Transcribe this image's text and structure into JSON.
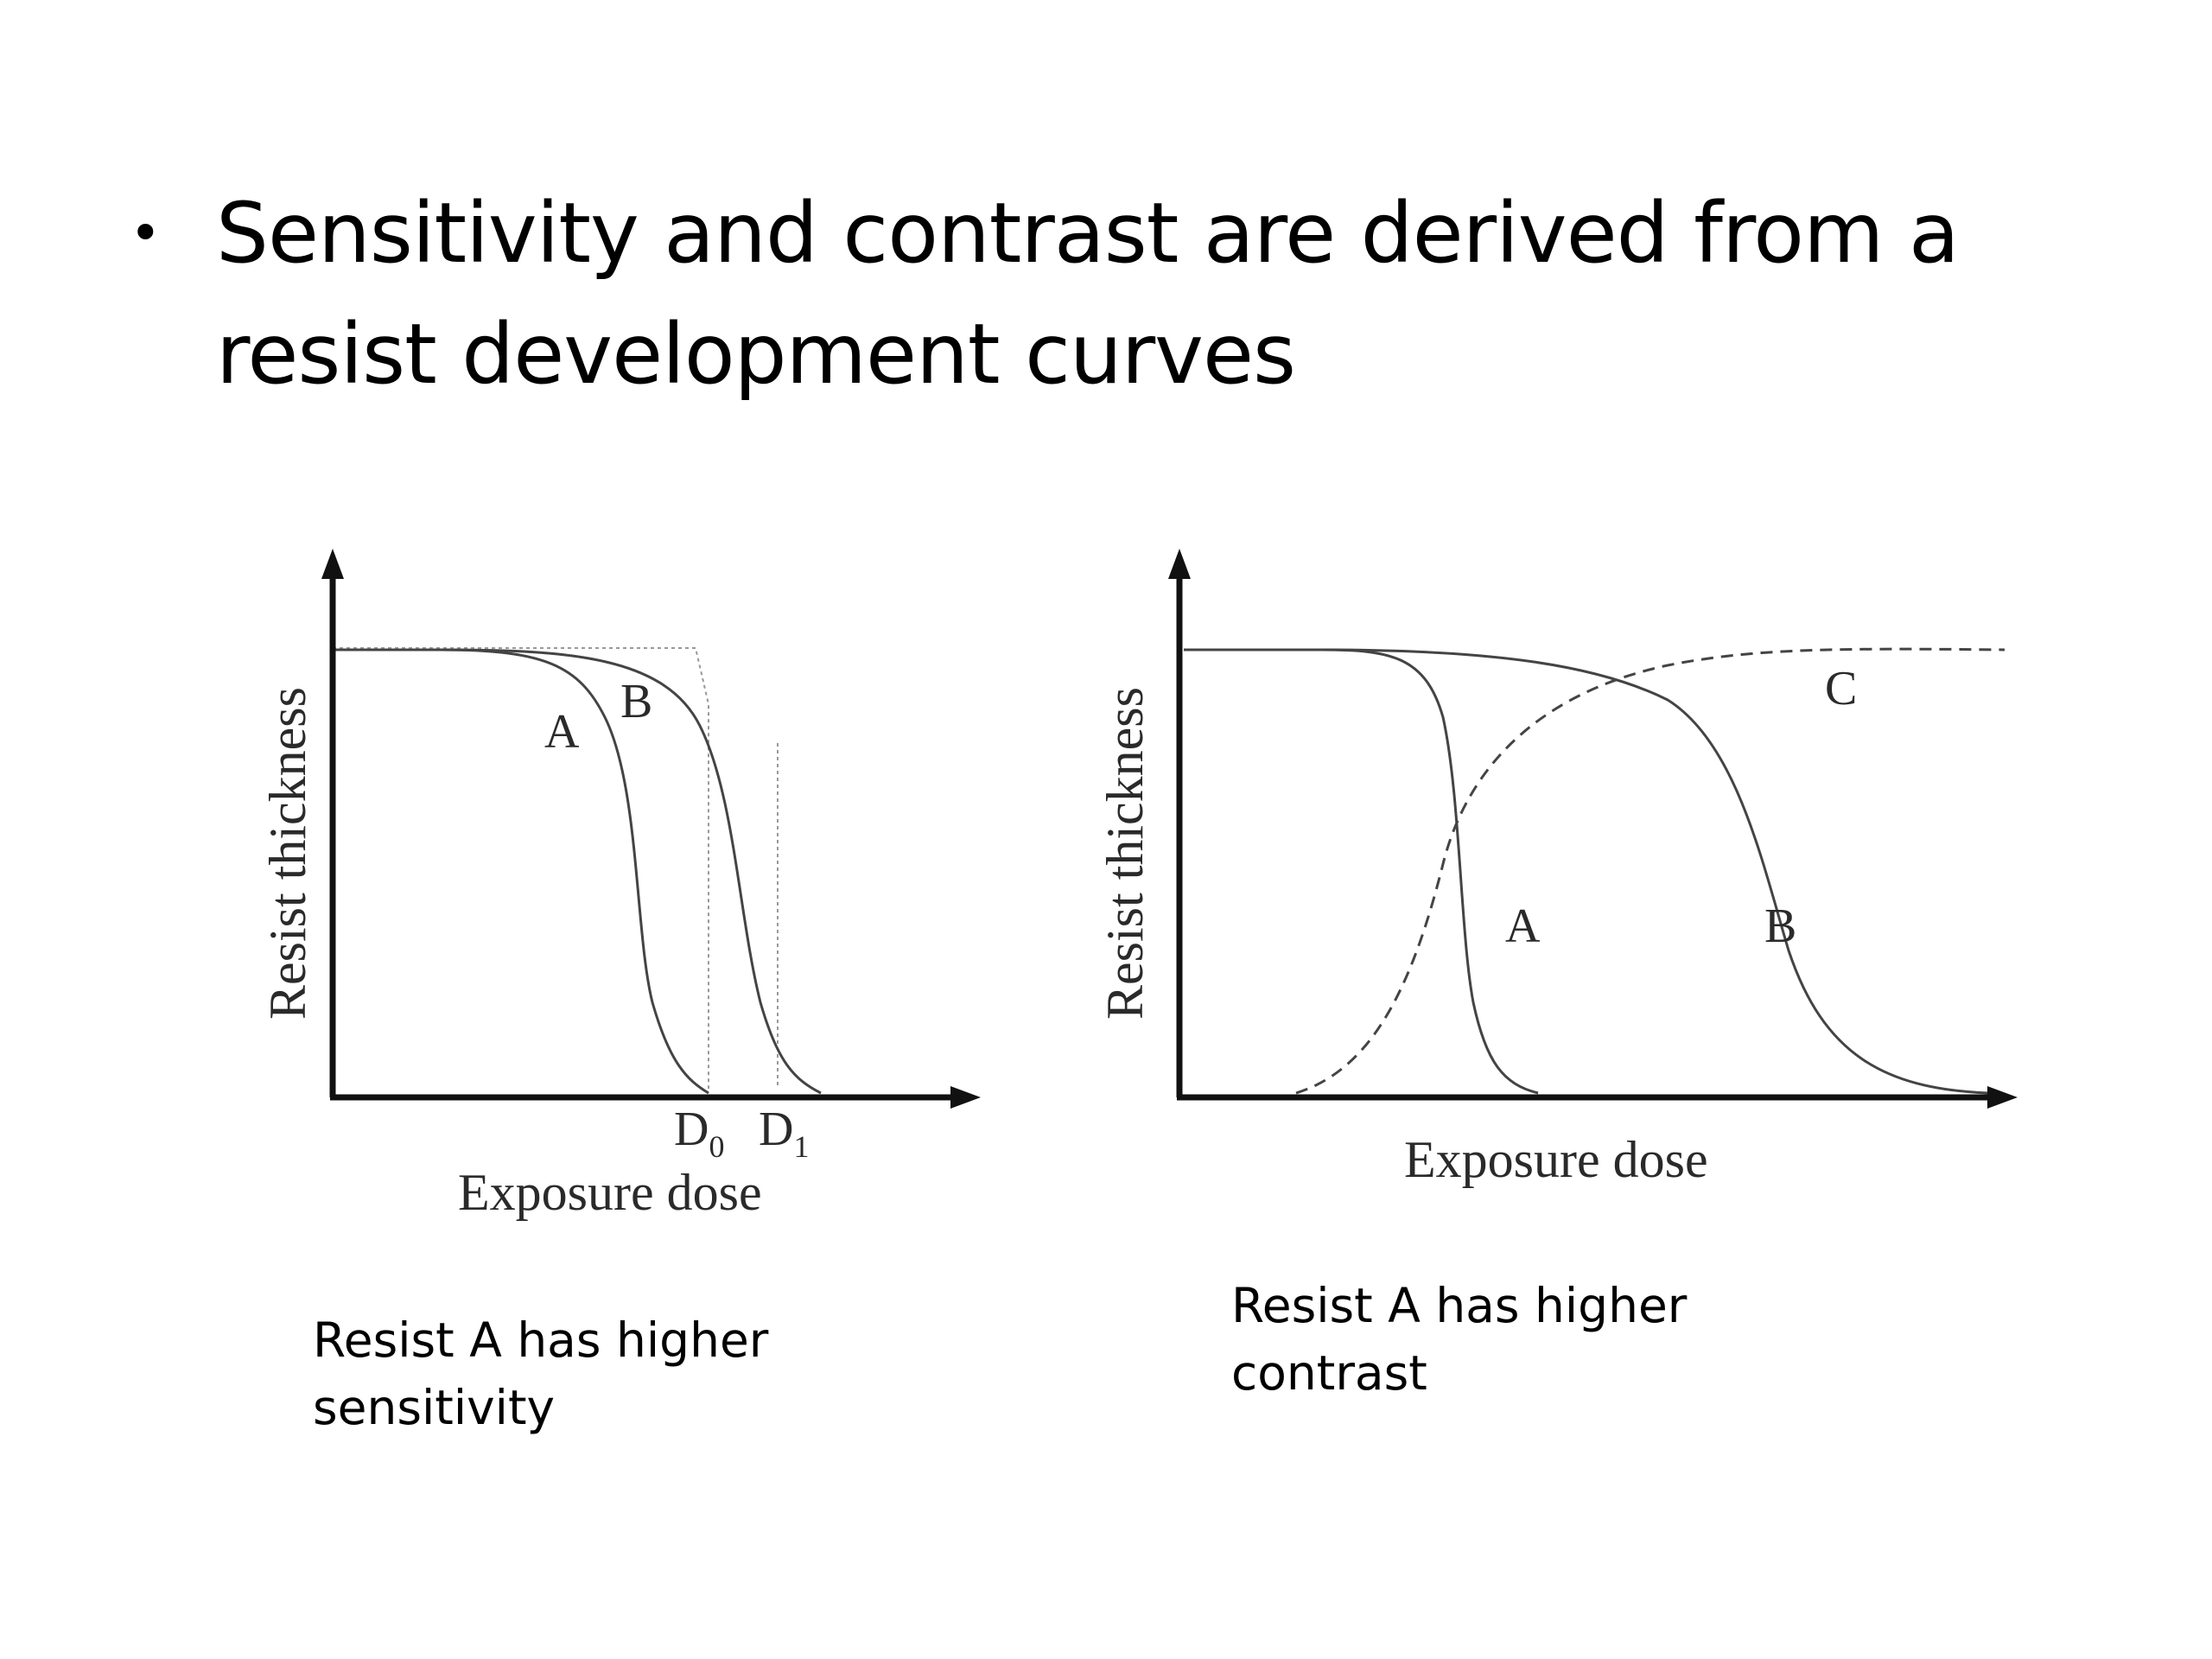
{
  "slide": {
    "bullet": "Sensitivity and contrast are derived from a resist development curves"
  },
  "figures": {
    "left": {
      "ylabel": "Resist thickness",
      "xlabel": "Exposure dose",
      "curve_labels": [
        "A",
        "B"
      ],
      "dose_markers": [
        {
          "main": "D",
          "sub": "0"
        },
        {
          "main": "D",
          "sub": "1"
        }
      ],
      "caption": "Resist A has higher sensitivity"
    },
    "right": {
      "ylabel": "Resist thickness",
      "xlabel": "Exposure dose",
      "curve_labels": [
        "A",
        "B",
        "C"
      ],
      "caption": "Resist A has higher contrast"
    }
  }
}
